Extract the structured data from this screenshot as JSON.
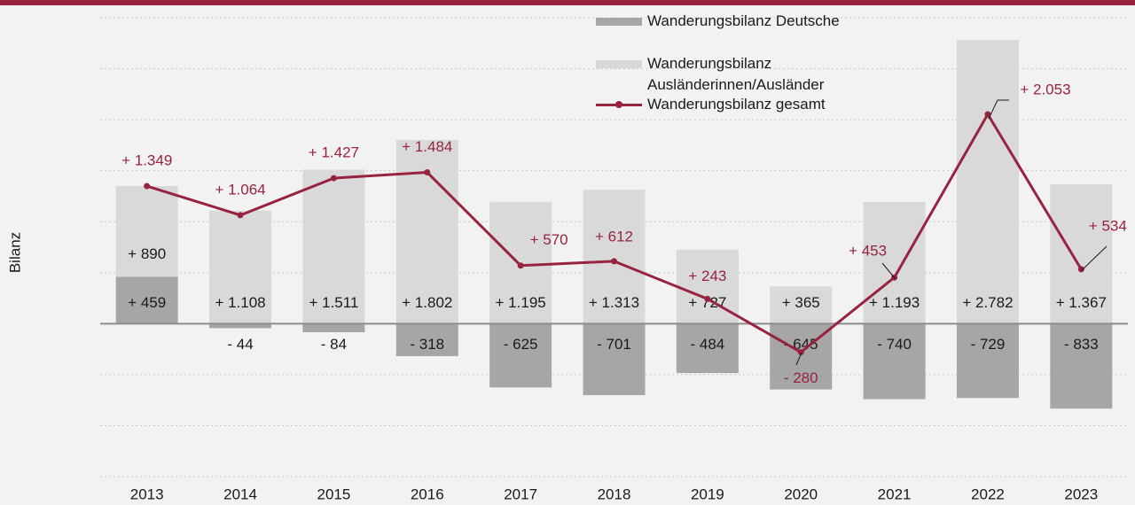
{
  "chart_data": {
    "type": "bar_line",
    "y_label": "Bilanz",
    "categories": [
      "2013",
      "2014",
      "2015",
      "2016",
      "2017",
      "2018",
      "2019",
      "2020",
      "2021",
      "2022",
      "2023"
    ],
    "series": [
      {
        "name": "Wanderungsbilanz Deutsche",
        "type": "bar",
        "color": "#a6a6a6",
        "values": [
          459,
          -44,
          -84,
          -318,
          -625,
          -701,
          -484,
          -645,
          -740,
          -729,
          -833
        ],
        "value_labels": [
          "+ 459",
          "- 44",
          "- 84",
          "- 318",
          "- 625",
          "- 701",
          "- 484",
          "- 645",
          "- 740",
          "- 729",
          "- 833"
        ]
      },
      {
        "name": "Wanderungsbilanz Ausländerinnen/Ausländer",
        "type": "bar",
        "color": "#d9d9d9",
        "values": [
          890,
          1108,
          1511,
          1802,
          1195,
          1313,
          727,
          365,
          1193,
          2782,
          1367
        ],
        "value_labels": [
          "+ 890",
          "+ 1.108",
          "+ 1.511",
          "+ 1.802",
          "+ 1.195",
          "+ 1.313",
          "+ 727",
          "+ 365",
          "+ 1.193",
          "+ 2.782",
          "+ 1.367"
        ]
      },
      {
        "name": "Wanderungsbilanz gesamt",
        "type": "line",
        "color": "#97233f",
        "values": [
          1349,
          1064,
          1427,
          1484,
          570,
          612,
          243,
          -280,
          453,
          2053,
          534
        ],
        "value_labels": [
          "+ 1.349",
          "+ 1.064",
          "+ 1.427",
          "+ 1.484",
          "+ 570",
          "+ 612",
          "+ 243",
          "- 280",
          "+ 453",
          "+ 2.053",
          "+ 534"
        ]
      }
    ],
    "ylim": [
      -1500,
      3000
    ],
    "yticks": [
      -1500,
      -1000,
      -500,
      0,
      500,
      1000,
      1500,
      2000,
      2500,
      3000
    ],
    "grid": true
  }
}
